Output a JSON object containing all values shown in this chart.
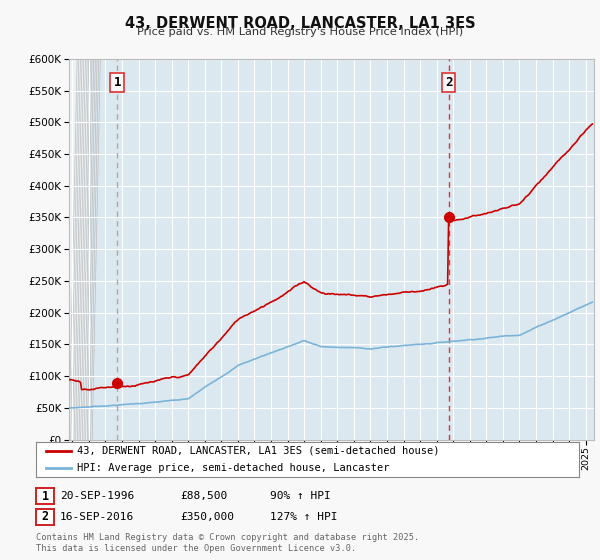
{
  "title": "43, DERWENT ROAD, LANCASTER, LA1 3ES",
  "subtitle": "Price paid vs. HM Land Registry's House Price Index (HPI)",
  "legend_line1": "43, DERWENT ROAD, LANCASTER, LA1 3ES (semi-detached house)",
  "legend_line2": "HPI: Average price, semi-detached house, Lancaster",
  "footnote": "Contains HM Land Registry data © Crown copyright and database right 2025.\nThis data is licensed under the Open Government Licence v3.0.",
  "sale1_date": "20-SEP-1996",
  "sale1_price": "£88,500",
  "sale1_hpi": "90% ↑ HPI",
  "sale2_date": "16-SEP-2016",
  "sale2_price": "£350,000",
  "sale2_hpi": "127% ↑ HPI",
  "hpi_color": "#7ab4d8",
  "price_color": "#cc0000",
  "sale1_vline_color": "#aaaaaa",
  "sale2_vline_color": "#dd3333",
  "background_color": "#f8f8f8",
  "plot_background": "#dce8f0",
  "grid_color": "#ffffff",
  "ylim": [
    0,
    600000
  ],
  "yticks": [
    0,
    50000,
    100000,
    150000,
    200000,
    250000,
    300000,
    350000,
    400000,
    450000,
    500000,
    550000,
    600000
  ],
  "sale1_year": 1996.72,
  "sale1_value": 88500,
  "sale2_year": 2016.72,
  "sale2_value": 350000,
  "xmin": 1993.8,
  "xmax": 2025.5
}
